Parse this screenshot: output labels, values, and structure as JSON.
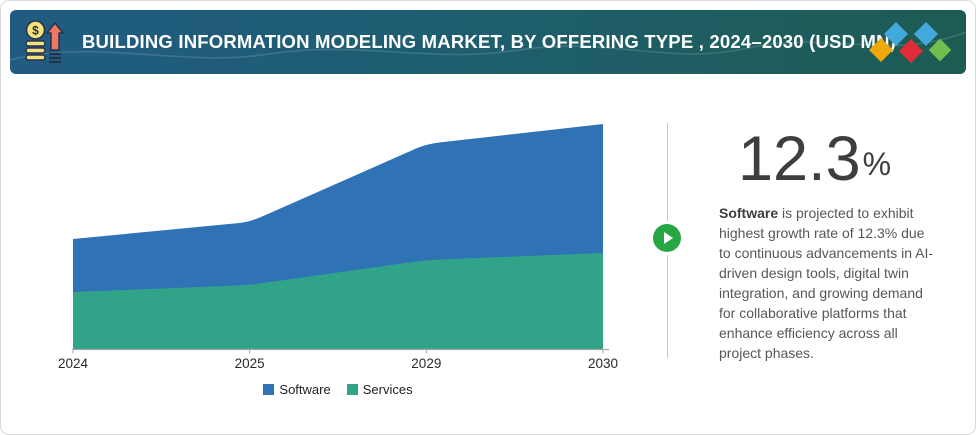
{
  "header": {
    "title": "BUILDING INFORMATION MODELING MARKET, BY OFFERING TYPE , 2024–2030 (USD MN)"
  },
  "chart_data": {
    "type": "area",
    "stacked": true,
    "title": "Building Information Modeling Market, by Offering Type, 2024–2030 (USD MN)",
    "categories": [
      "2024",
      "2025",
      "2029",
      "2030"
    ],
    "series": [
      {
        "name": "Software",
        "color": "#2F73B6",
        "values": [
          53,
          63,
          116,
          129
        ]
      },
      {
        "name": "Services",
        "color": "#31A388",
        "values": [
          57,
          64,
          89,
          96
        ]
      }
    ],
    "stack_order_bottom_to_top": [
      "Services",
      "Software"
    ],
    "legend_order": [
      "Software",
      "Services"
    ],
    "xlabel": "",
    "ylabel": "USD MN",
    "y_axis_shown": false,
    "values_note": "No y-axis labels shown in figure; values are relative estimates of stacked segment heights",
    "legend_position": "bottom-center",
    "grid": false
  },
  "stat_panel": {
    "value": "12.3",
    "unit": "%",
    "description_lead": "Software",
    "description_rest": " is projected to exhibit highest growth rate of 12.3% due to continuous advancements in AI-driven design tools, digital twin integration, and growing demand for collaborative platforms that enhance efficiency across all project phases."
  },
  "icons": {
    "header_left": "coins-growth-icon",
    "header_right": "brand-diamonds-logo",
    "play": "play-icon",
    "coin_symbol": "$"
  },
  "colors": {
    "header_gradient_left": "#215B82",
    "header_gradient_right": "#1D5C52",
    "software_blue": "#2F73B6",
    "services_green": "#31A388",
    "play_green": "#27A744",
    "stat_text": "#3E3E3E",
    "body_text": "#575757",
    "divider": "#C9C9C9",
    "axis": "#A6A6A6",
    "axis_label": "#2B2B2B",
    "logo_yellow": "#EDA90B",
    "logo_blue": "#41A9DB",
    "logo_red": "#E02D39",
    "logo_green": "#6FBE4E",
    "coin_fill": "#F6E27C",
    "arrow_fill": "#EE7862",
    "icon_outline": "#26324B"
  }
}
